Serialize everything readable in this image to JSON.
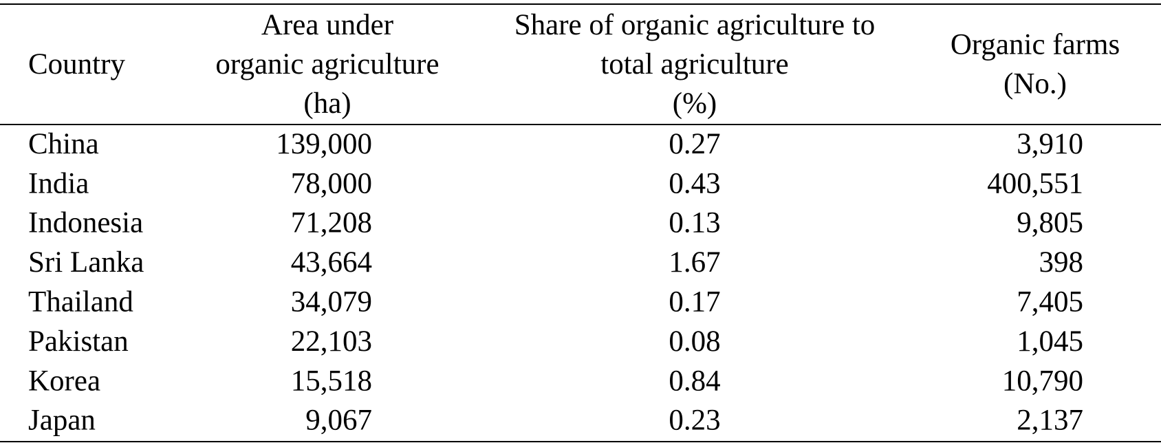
{
  "table": {
    "columns": [
      {
        "lines": [
          "Country"
        ]
      },
      {
        "lines": [
          "Area under",
          "organic agriculture",
          "(ha)"
        ]
      },
      {
        "lines": [
          "Share of organic agriculture to",
          "total agriculture",
          "(%)"
        ]
      },
      {
        "lines": [
          "Organic farms",
          "(No.)"
        ]
      }
    ],
    "rows": [
      [
        "China",
        "139,000",
        "0.27",
        "3,910"
      ],
      [
        "India",
        "78,000",
        "0.43",
        "400,551"
      ],
      [
        "Indonesia",
        "71,208",
        "0.13",
        "9,805"
      ],
      [
        "Sri Lanka",
        "43,664",
        "1.67",
        "398"
      ],
      [
        "Thailand",
        "34,079",
        "0.17",
        "7,405"
      ],
      [
        "Pakistan",
        "22,103",
        "0.08",
        "1,045"
      ],
      [
        "Korea",
        "15,518",
        "0.84",
        "10,790"
      ],
      [
        "Japan",
        "9,067",
        "0.23",
        "2,137"
      ]
    ]
  }
}
